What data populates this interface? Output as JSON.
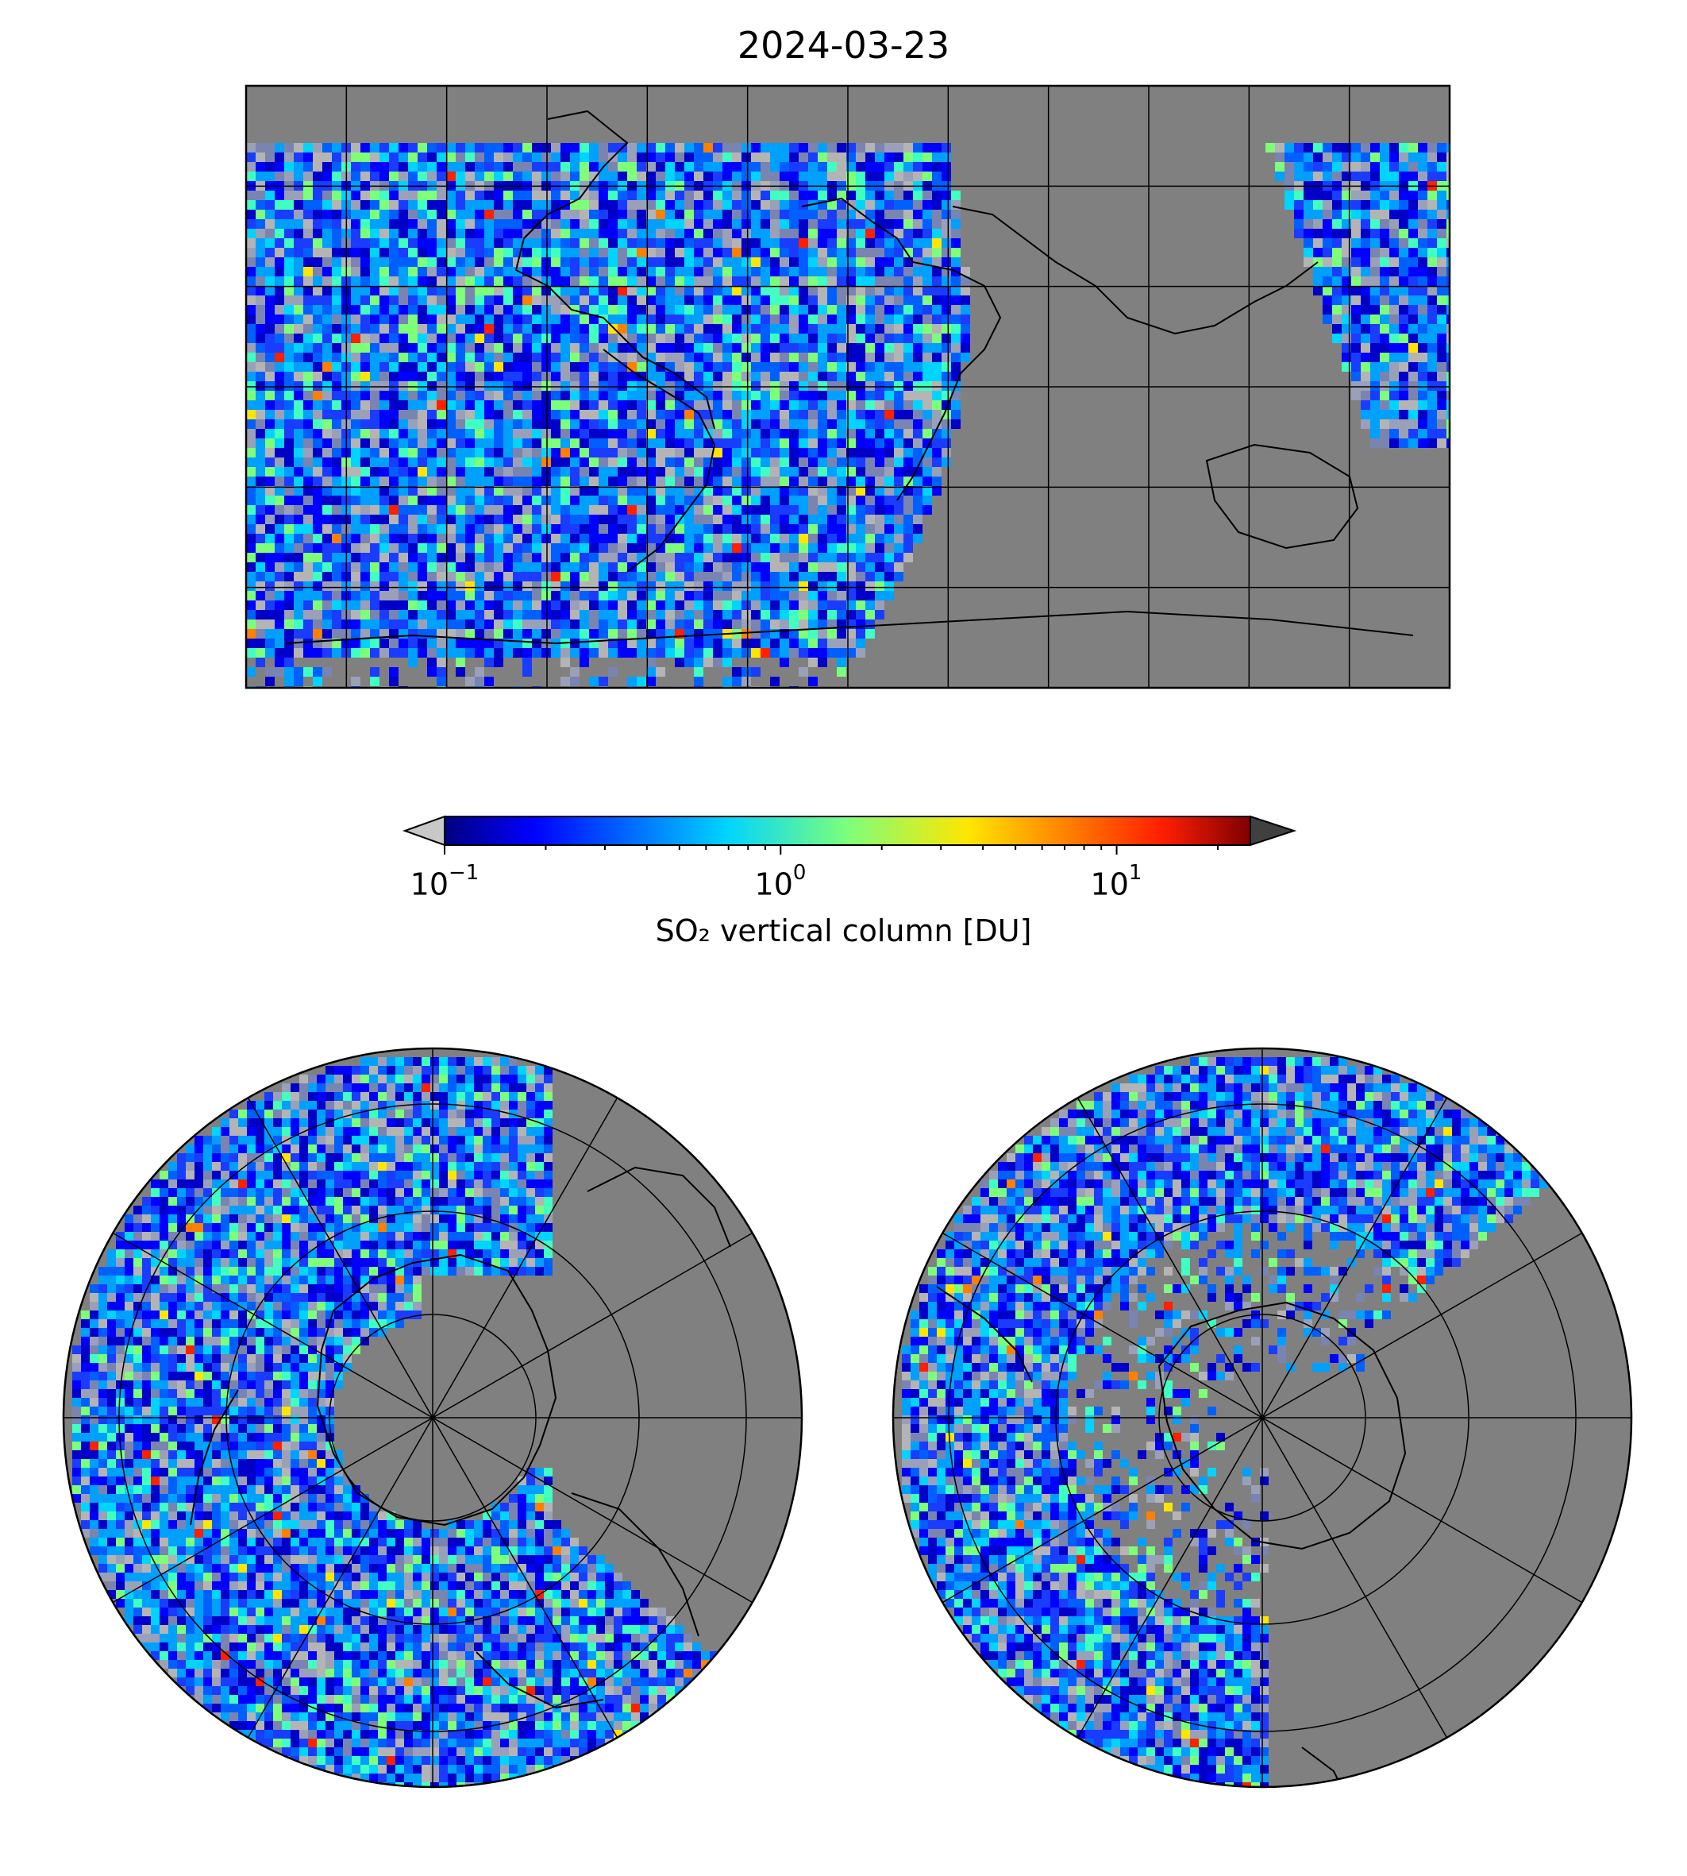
{
  "title": "2024-03-23",
  "colorbar": {
    "label": "SO₂ vertical column [DU]",
    "scale": "log",
    "range": [
      0.1,
      25
    ],
    "ticks": [
      {
        "base": "10",
        "exp": "−1"
      },
      {
        "base": "10",
        "exp": "0"
      },
      {
        "base": "10",
        "exp": "1"
      }
    ],
    "colormap": "jet",
    "under_color": "#c8c8c8",
    "over_color": "#404040"
  },
  "colors": {
    "no_data": "#808080",
    "land_outline": "#000000",
    "grid": "#000000"
  },
  "maps": [
    {
      "name": "global-plate-carree",
      "projection": "PlateCarree",
      "extent": [
        -180,
        180,
        -90,
        90
      ],
      "gridlines": "every 30°"
    },
    {
      "name": "north-polar",
      "projection": "NorthPolarStereo",
      "extent_lat": [
        0,
        90
      ],
      "gridlines": "every 30°/15°"
    },
    {
      "name": "south-polar",
      "projection": "SouthPolarStereo",
      "extent_lat": [
        -90,
        0
      ],
      "gridlines": "every 30°/15°"
    }
  ]
}
